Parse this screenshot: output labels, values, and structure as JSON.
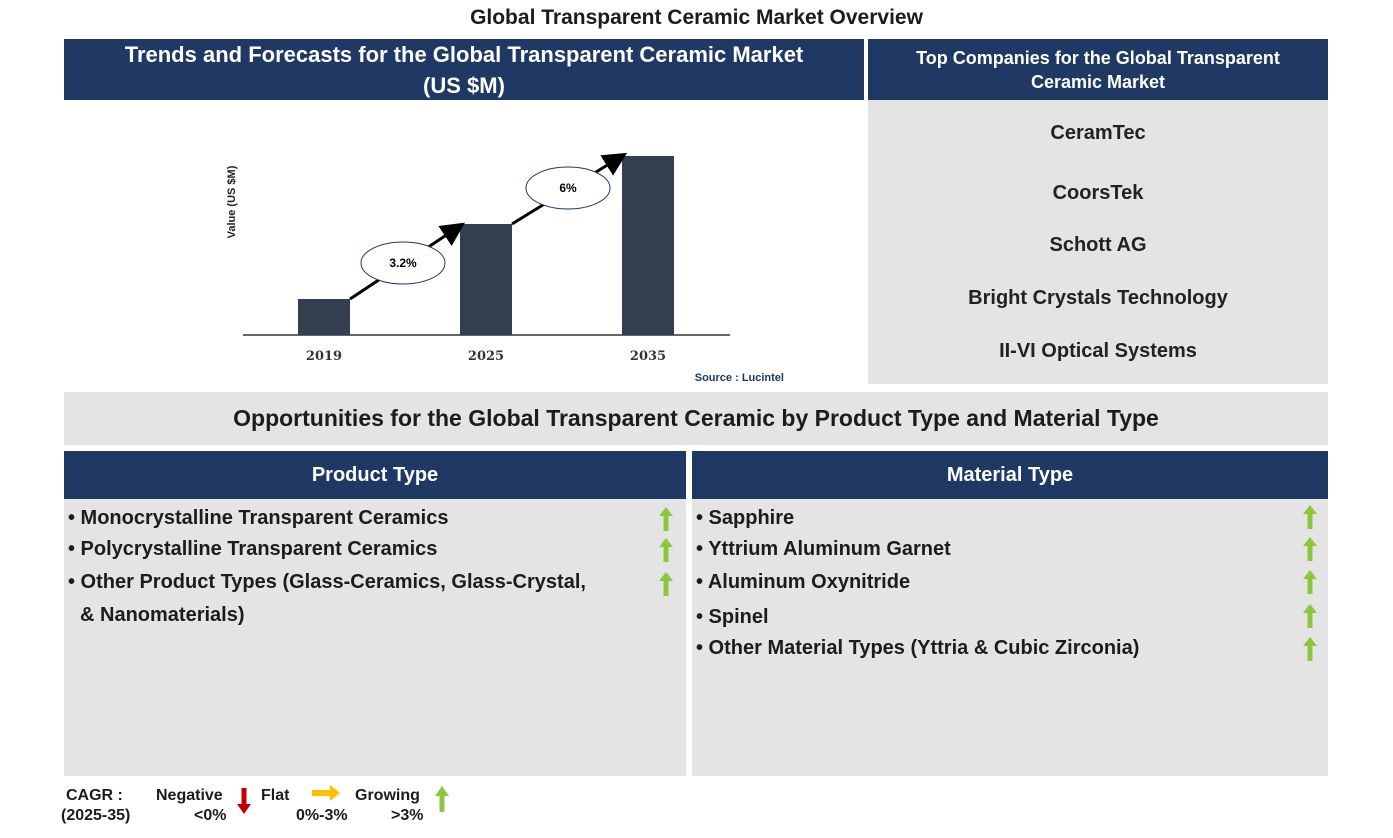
{
  "title": "Global Transparent Ceramic Market Overview",
  "chart_panel": {
    "header": "Trends and Forecasts for the Global Transparent Ceramic Market (US $M)"
  },
  "chart_data": {
    "type": "bar",
    "categories": [
      "2019",
      "2025",
      "2035"
    ],
    "ylabel": "Value (US $M)",
    "cagr_labels": [
      "3.2%",
      "6%"
    ],
    "source": "Source : Lucintel",
    "bar_color": "#333f50"
  },
  "companies": {
    "header": "Top Companies for the Global Transparent Ceramic Market",
    "items": [
      "CeramTec",
      "CoorsTek",
      "Schott AG",
      "Bright Crystals Technology",
      "II-VI Optical Systems"
    ]
  },
  "opportunities": {
    "title": "Opportunities for the Global Transparent Ceramic by Product Type and Material Type",
    "product": {
      "header": "Product Type",
      "items": [
        {
          "line1": "• Monocrystalline Transparent Ceramics",
          "trend": "growing"
        },
        {
          "line1": "• Polycrystalline Transparent Ceramics",
          "trend": "growing"
        },
        {
          "line1": "• Other Product Types (Glass-Ceramics, Glass-Crystal,",
          "line2": "& Nanomaterials)",
          "trend": "growing"
        }
      ]
    },
    "material": {
      "header": "Material Type",
      "items": [
        {
          "line1": "• Sapphire",
          "trend": "growing"
        },
        {
          "line1": "• Yttrium Aluminum Garnet",
          "trend": "growing"
        },
        {
          "line1": "• Aluminum Oxynitride",
          "trend": "growing"
        },
        {
          "line1": "• Spinel",
          "trend": "growing"
        },
        {
          "line1": "• Other Material Types (Yttria & Cubic Zirconia)",
          "trend": "growing"
        }
      ]
    }
  },
  "legend": {
    "cagr": "CAGR :",
    "period": "(2025-35)",
    "negative": "Negative",
    "negative_range": "<0%",
    "flat": "Flat",
    "flat_range": "0%-3%",
    "growing": "Growing",
    "growing_range": ">3%"
  },
  "colors": {
    "navy": "#1f3864",
    "panel": "#e4e4e4",
    "up": "#8cc63f",
    "down": "#c00000",
    "flat": "#ffc000"
  }
}
